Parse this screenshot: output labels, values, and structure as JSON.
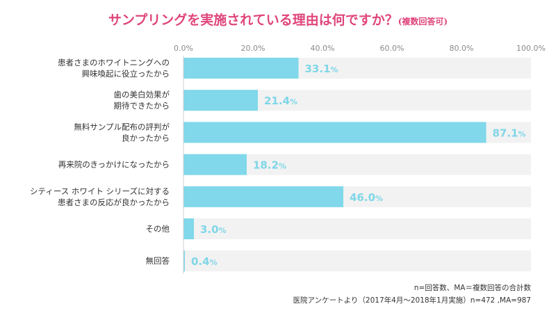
{
  "title": {
    "main": "サンプリングを実施されている理由は何ですか？",
    "sub": "(複数回答可)"
  },
  "chart_data": {
    "type": "bar",
    "orientation": "horizontal",
    "xlim": [
      0,
      100
    ],
    "ticks": [
      "0.0%",
      "20.0%",
      "40.0%",
      "60.0%",
      "80.0%",
      "100.0%"
    ],
    "tick_values": [
      0,
      20,
      40,
      60,
      80,
      100
    ],
    "categories": [
      [
        "患者さまのホワイトニングへの",
        "興味喚起に役立ったから"
      ],
      [
        "歯の美白効果が",
        "期待できたから"
      ],
      [
        "無料サンプル配布の評判が",
        "良かったから"
      ],
      [
        "再来院のきっかけになったから"
      ],
      [
        "シティース ホワイト シリーズに対する",
        "患者さまの反応が良かったから"
      ],
      [
        "その他"
      ],
      [
        "無回答"
      ]
    ],
    "values": [
      33.1,
      21.4,
      87.1,
      18.2,
      46.0,
      3.0,
      0.4
    ],
    "value_labels": [
      {
        "num": "33.1",
        "unit": "%"
      },
      {
        "num": "21.4",
        "unit": "%"
      },
      {
        "num": "87.1",
        "unit": "%"
      },
      {
        "num": "18.2",
        "unit": "%"
      },
      {
        "num": "46.0",
        "unit": "%"
      },
      {
        "num": "3.0",
        "unit": "%"
      },
      {
        "num": "0.4",
        "unit": "%"
      }
    ],
    "bar_color": "#80d8ea",
    "track_color": "#f2f2f2",
    "grid": false
  },
  "footnotes": {
    "line1": "n=回答数、MA＝複数回答の合計数",
    "line2": "医院アンケートより（2017年4月～2018年1月実施）n=472 ,MA=987"
  }
}
